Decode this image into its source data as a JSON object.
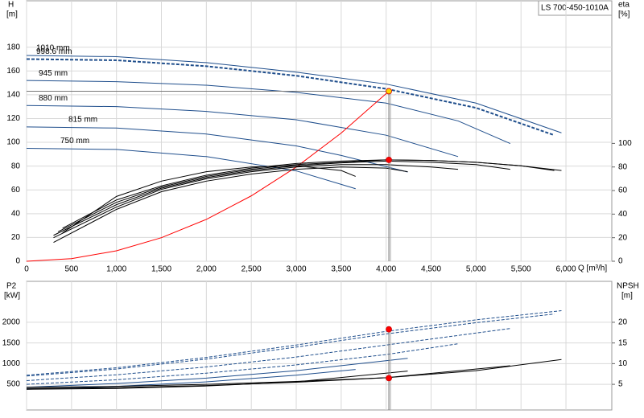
{
  "chart_data": [
    {
      "type": "line",
      "label": "LS 700-450-1010A",
      "y_label": "H",
      "y_unit": "[m]",
      "y2_label": "eta",
      "y2_unit": "[%]",
      "x_label": "Q [m³/h]",
      "xlim": [
        0,
        6510
      ],
      "xticks": [
        0,
        500,
        {
          "value": 1000,
          "label": "1,000"
        },
        {
          "value": 1500,
          "label": "1,500"
        },
        {
          "value": 2000,
          "label": "2,000"
        },
        {
          "value": 2500,
          "label": "2,500"
        },
        {
          "value": 3000,
          "label": "3,000"
        },
        {
          "value": 3500,
          "label": "3,500"
        },
        {
          "value": 4000,
          "label": "4,000"
        },
        {
          "value": 4500,
          "label": "4,500"
        },
        {
          "value": 5000,
          "label": "5,000"
        },
        {
          "value": 5500,
          "label": "5,500"
        },
        {
          "value": 6000,
          "label": "6,000"
        }
      ],
      "ylim": [
        0,
        219
      ],
      "yticks": [
        0,
        20,
        40,
        60,
        80,
        100,
        120,
        140,
        160,
        180
      ],
      "y2lim": [
        0,
        221
      ],
      "y2ticks": [
        0,
        20,
        40,
        60,
        80,
        100
      ],
      "grid": true,
      "series": [
        {
          "name": "1010 mm",
          "color": "#1f4e8c",
          "x": [
            0,
            1000,
            2000,
            3000,
            4000,
            5000,
            5950
          ],
          "values": [
            173,
            172,
            167,
            159,
            149,
            133,
            108
          ]
        },
        {
          "name": "998.6 mm",
          "color": "#1f4e8c",
          "dash": true,
          "width": 2,
          "x": [
            0,
            1000,
            2000,
            3000,
            4000,
            5000,
            5870
          ],
          "values": [
            170,
            169,
            164,
            156,
            145,
            129,
            106
          ]
        },
        {
          "name": "945 mm",
          "color": "#1f4e8c",
          "x": [
            0,
            1000,
            2000,
            3000,
            4000,
            4800,
            5380
          ],
          "values": [
            152,
            151,
            148,
            142,
            133,
            118,
            99
          ]
        },
        {
          "name": "880 mm",
          "color": "#1f4e8c",
          "x": [
            0,
            1000,
            2000,
            3000,
            4000,
            4800
          ],
          "values": [
            131,
            130,
            126,
            119,
            106,
            88
          ]
        },
        {
          "name": "815 mm",
          "color": "#1f4e8c",
          "x": [
            0,
            1000,
            2000,
            3000,
            3500,
            4240
          ],
          "values": [
            113,
            112,
            107,
            97,
            89,
            75
          ]
        },
        {
          "name": "750 mm",
          "color": "#1f4e8c",
          "x": [
            0,
            1000,
            2000,
            3000,
            3660
          ],
          "values": [
            95,
            94,
            88,
            76,
            61
          ]
        },
        {
          "color": "#ff0000",
          "x": [
            0,
            500,
            1000,
            1500,
            2000,
            2500,
            3000,
            3500,
            4030
          ],
          "values": [
            0,
            2.2,
            8.8,
            19.8,
            35.2,
            55,
            79.2,
            107.8,
            143
          ]
        },
        {
          "axis": "y2",
          "color": "#000000",
          "x": [
            400,
            1000,
            1500,
            2000,
            2500,
            3000,
            3500,
            4000,
            4500,
            5000,
            5500,
            5950
          ],
          "values": [
            28,
            52,
            64,
            73,
            79,
            83,
            85,
            86,
            85.5,
            84,
            81,
            77
          ]
        },
        {
          "axis": "y2",
          "color": "#000000",
          "x": [
            350,
            1000,
            1500,
            2000,
            2500,
            3000,
            3500,
            4000,
            4500,
            5000,
            5500,
            5870
          ],
          "values": [
            25,
            50,
            63,
            72,
            78,
            82,
            84,
            86,
            85.5,
            84,
            81,
            77
          ]
        },
        {
          "axis": "y2",
          "color": "#000000",
          "x": [
            300,
            1000,
            1500,
            2000,
            2500,
            3000,
            3500,
            4000,
            4500,
            5000,
            5380
          ],
          "values": [
            22,
            48,
            62,
            71,
            77,
            81,
            83.5,
            85,
            84,
            82,
            78
          ]
        },
        {
          "axis": "y2",
          "color": "#000000",
          "x": [
            300,
            1000,
            1500,
            2000,
            2500,
            3000,
            3500,
            4000,
            4500,
            4800
          ],
          "values": [
            20,
            46,
            61,
            70,
            76,
            80,
            82,
            82,
            80,
            78
          ]
        },
        {
          "axis": "y2",
          "color": "#000000",
          "x": [
            300,
            1000,
            1500,
            2000,
            2500,
            3000,
            3500,
            4000,
            4240
          ],
          "values": [
            16,
            44,
            59,
            68,
            74,
            78,
            80,
            79,
            76
          ]
        },
        {
          "axis": "y2",
          "color": "#000000",
          "x": [
            400,
            1000,
            1500,
            2000,
            2500,
            3000,
            3500,
            3660
          ],
          "values": [
            24,
            55,
            68,
            76,
            80,
            81,
            77,
            72
          ]
        },
        {
          "color": "#ffd700",
          "marker": true,
          "guides": true,
          "x": [
            4030
          ],
          "values": [
            143
          ]
        },
        {
          "axis": "y2",
          "color": "#ff0000",
          "marker": true,
          "x": [
            4030
          ],
          "values": [
            86
          ]
        }
      ]
    },
    {
      "type": "line",
      "y_label": "P2",
      "y_unit": "[kW]",
      "y2_label": "NPSH",
      "y2_unit": "[m]",
      "xlim": [
        0,
        6510
      ],
      "ylim": [
        -120,
        2990
      ],
      "yticks": [
        500,
        1000,
        1500,
        2000
      ],
      "y2lim": [
        -1.2,
        29.9
      ],
      "y2ticks": [
        5,
        10,
        15,
        20
      ],
      "grid": true,
      "series": [
        {
          "color": "#1f4e8c",
          "dash": true,
          "x": [
            0,
            1000,
            2000,
            3000,
            4000,
            5000,
            5950
          ],
          "values": [
            720,
            900,
            1150,
            1450,
            1780,
            2060,
            2280
          ]
        },
        {
          "color": "#1f4e8c",
          "dash": true,
          "x": [
            0,
            1000,
            2000,
            3000,
            4000,
            5000,
            5870
          ],
          "values": [
            700,
            870,
            1110,
            1400,
            1720,
            1990,
            2200
          ]
        },
        {
          "color": "#1f4e8c",
          "dash": true,
          "x": [
            0,
            1000,
            2000,
            3000,
            4000,
            5380
          ],
          "values": [
            590,
            730,
            920,
            1160,
            1450,
            1850
          ]
        },
        {
          "color": "#1f4e8c",
          "dash": true,
          "x": [
            0,
            1000,
            2000,
            3000,
            4000,
            4800
          ],
          "values": [
            500,
            610,
            770,
            970,
            1220,
            1480
          ]
        },
        {
          "color": "#1f4e8c",
          "x": [
            0,
            1000,
            2000,
            3000,
            4240
          ],
          "values": [
            430,
            520,
            650,
            830,
            1130
          ]
        },
        {
          "color": "#1f4e8c",
          "x": [
            0,
            1000,
            2000,
            3000,
            3660
          ],
          "values": [
            380,
            450,
            560,
            720,
            860
          ]
        },
        {
          "axis": "y2",
          "color": "#000000",
          "x": [
            0,
            1000,
            2000,
            3000,
            4000,
            5000,
            5950
          ],
          "values": [
            4.3,
            4.5,
            5,
            5.7,
            6.6,
            8.3,
            11
          ]
        },
        {
          "axis": "y2",
          "color": "#000000",
          "x": [
            0,
            1000,
            2000,
            3000,
            4000,
            5380
          ],
          "values": [
            4,
            4.2,
            4.7,
            5.5,
            6.6,
            9.5
          ]
        },
        {
          "axis": "y2",
          "color": "#000000",
          "x": [
            0,
            1000,
            2000,
            3000,
            4240
          ],
          "values": [
            3.8,
            4,
            4.6,
            5.6,
            8.2
          ]
        },
        {
          "color": "#ff0000",
          "marker": true,
          "guides": true,
          "x": [
            4030
          ],
          "values": [
            1830
          ]
        },
        {
          "axis": "y2",
          "color": "#ff0000",
          "marker": true,
          "x": [
            4030
          ],
          "values": [
            6.5
          ]
        }
      ]
    }
  ]
}
